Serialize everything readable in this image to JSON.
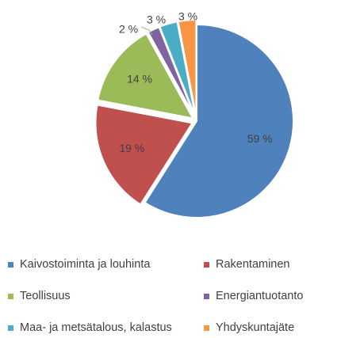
{
  "chart_data": {
    "type": "pie",
    "title": "",
    "legend_position": "bottom",
    "slices": [
      {
        "name": "Kaivostoiminta ja louhinta",
        "value": 59,
        "label": "59 %",
        "color": "#4F81BD"
      },
      {
        "name": "Rakentaminen",
        "value": 19,
        "label": "19 %",
        "color": "#C0504D"
      },
      {
        "name": "Teollisuus",
        "value": 14,
        "label": "14 %",
        "color": "#9BBB59"
      },
      {
        "name": "Energiantuotanto",
        "value": 2,
        "label": "2 %",
        "color": "#8064A2"
      },
      {
        "name": "Maa- ja metsätalous, kalastus",
        "value": 3,
        "label": "3 %",
        "color": "#4BACC6"
      },
      {
        "name": "Yhdyskuntajäte",
        "value": 3,
        "label": "3 %",
        "color": "#F79646"
      }
    ]
  }
}
